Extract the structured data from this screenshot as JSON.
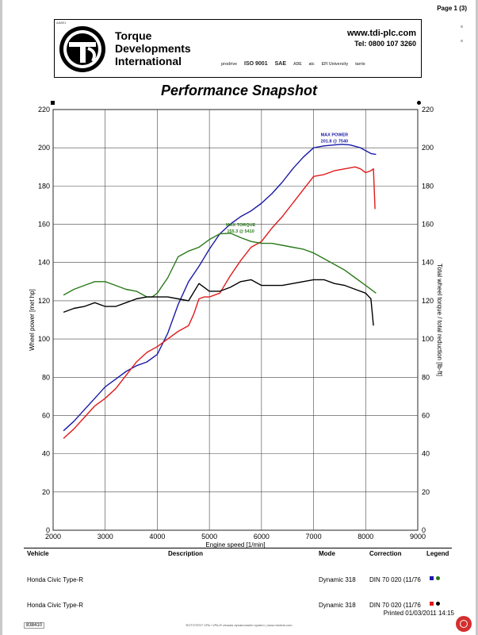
{
  "page": {
    "number": "Page 1 (3)",
    "printed": "Printed 01/03/2011 14:15",
    "report_code": "838410",
    "footer_text": "ROTOTEST VPA / VPA-R chassis dynamometer system | www.rototest.com",
    "header_code": "AAB91"
  },
  "header": {
    "company_name": "Torque\nDevelopments\nInternational",
    "website": "www.tdi-plc.com",
    "telephone": "Tel: 0800 107 3260",
    "certifications": [
      "prodrive",
      "ISO 9001",
      "SAE",
      "ADE",
      "atc",
      "EFI University",
      "tarrie"
    ]
  },
  "chart_data": {
    "type": "line",
    "title": "Performance Snapshot",
    "xlabel": "Engine speed [1/min]",
    "ylabel_left": "Wheel power [met hp]",
    "ylabel_right": "Total wheel torque / total reduction [lb-ft]",
    "xlim": [
      2000,
      9000
    ],
    "ylim": [
      0,
      220
    ],
    "x_ticks": [
      2000,
      3000,
      4000,
      5000,
      6000,
      7000,
      8000,
      9000
    ],
    "y_ticks": [
      0,
      20,
      40,
      60,
      80,
      100,
      120,
      140,
      160,
      180,
      200,
      220
    ],
    "grid": true,
    "series": [
      {
        "color": "#1a1aa8",
        "x": [
          2200,
          2400,
          2600,
          2800,
          3000,
          3200,
          3400,
          3600,
          3800,
          4000,
          4200,
          4400,
          4600,
          4800,
          5000,
          5200,
          5400,
          5600,
          5800,
          6000,
          6200,
          6400,
          6600,
          6800,
          7000,
          7200,
          7400,
          7540,
          7700,
          7900,
          8100,
          8200
        ],
        "y": [
          52,
          57,
          63,
          69,
          75,
          79,
          83,
          86,
          88,
          92,
          103,
          118,
          130,
          138,
          147,
          155,
          160,
          164,
          167,
          171,
          176,
          182,
          189,
          195,
          200,
          201,
          201.5,
          201.8,
          201.5,
          200,
          197,
          196.5
        ]
      },
      {
        "color": "#e01a1a",
        "x": [
          2200,
          2400,
          2600,
          2800,
          3000,
          3200,
          3400,
          3600,
          3800,
          4000,
          4200,
          4400,
          4600,
          4700,
          4800,
          4900,
          5000,
          5200,
          5400,
          5600,
          5800,
          6000,
          6200,
          6400,
          6600,
          6800,
          7000,
          7200,
          7400,
          7600,
          7800,
          7900,
          8000,
          8100,
          8150,
          8180
        ],
        "y": [
          48,
          53,
          59,
          65,
          69,
          74,
          81,
          88,
          93,
          96,
          100,
          104,
          107,
          113,
          121,
          122,
          122,
          124,
          133,
          141,
          148,
          151,
          158,
          164,
          171,
          178,
          185,
          186,
          188,
          189,
          190,
          189,
          187,
          188,
          189,
          168
        ]
      },
      {
        "color": "#2a7a1a",
        "x": [
          2200,
          2400,
          2600,
          2800,
          3000,
          3200,
          3400,
          3600,
          3800,
          3900,
          4000,
          4200,
          4400,
          4600,
          4800,
          5000,
          5200,
          5410,
          5600,
          5800,
          6000,
          6200,
          6400,
          6600,
          6800,
          7000,
          7200,
          7400,
          7600,
          7800,
          8000,
          8200
        ],
        "y": [
          123,
          126,
          128,
          130,
          130,
          128,
          126,
          125,
          122,
          122,
          124,
          132,
          143,
          146,
          148,
          152,
          155,
          155.3,
          153,
          151,
          150,
          150,
          149,
          148,
          147,
          145,
          142,
          139,
          136,
          132,
          128,
          124
        ]
      },
      {
        "color": "#000000",
        "x": [
          2200,
          2400,
          2600,
          2800,
          3000,
          3200,
          3400,
          3600,
          3800,
          4000,
          4200,
          4400,
          4600,
          4800,
          5000,
          5200,
          5400,
          5600,
          5800,
          6000,
          6200,
          6400,
          6600,
          6800,
          7000,
          7200,
          7400,
          7600,
          7800,
          8000,
          8100,
          8150
        ],
        "y": [
          114,
          116,
          117,
          119,
          117,
          117,
          119,
          121,
          122,
          122,
          122,
          121,
          120,
          129,
          125,
          125,
          127,
          130,
          131,
          128,
          128,
          128,
          129,
          130,
          131,
          131,
          129,
          128,
          126,
          124,
          121,
          107
        ]
      }
    ],
    "annotations": [
      {
        "text_lines": [
          "MAX POWER",
          "201.8 @ 7540"
        ],
        "x": 7400,
        "y": 206,
        "color": "#1a1aa8"
      },
      {
        "text_lines": [
          "MAX TORQUE",
          "155.3 @ 5410"
        ],
        "x": 5600,
        "y": 159,
        "color": "#2a7a1a"
      }
    ]
  },
  "table": {
    "headers": {
      "vehicle": "Vehicle",
      "description": "Description",
      "mode": "Mode",
      "correction": "Correction",
      "legend": "Legend"
    },
    "rows": [
      {
        "vehicle": "Honda Civic Type-R",
        "description": "",
        "mode": "Dynamic 318",
        "correction": "DIN 70 020 (11/76",
        "legend_colors": [
          "#1a1aa8",
          "#2a7a1a"
        ]
      },
      {
        "vehicle": "Honda Civic Type-R",
        "description": "",
        "mode": "Dynamic 318",
        "correction": "DIN 70 020 (11/76",
        "legend_colors": [
          "#e01a1a",
          "#000000"
        ]
      }
    ]
  }
}
